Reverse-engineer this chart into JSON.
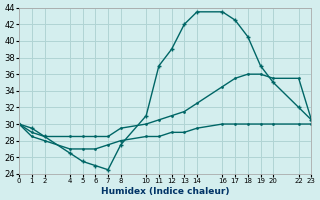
{
  "xlabel": "Humidex (Indice chaleur)",
  "background_color": "#d4eeee",
  "grid_color": "#b0d4d4",
  "line_color": "#006666",
  "ylim": [
    24,
    44
  ],
  "yticks": [
    24,
    26,
    28,
    30,
    32,
    34,
    36,
    38,
    40,
    42,
    44
  ],
  "xlim": [
    0,
    23
  ],
  "xtick_positions": [
    0,
    1,
    2,
    4,
    5,
    6,
    7,
    8,
    10,
    11,
    12,
    13,
    14,
    16,
    17,
    18,
    19,
    20,
    22,
    23
  ],
  "xtick_labels": [
    "0",
    "1",
    "2",
    "4",
    "5",
    "6",
    "7",
    "8",
    "10",
    "11",
    "12",
    "13",
    "14",
    "16",
    "17",
    "18",
    "19",
    "20",
    "22",
    "23"
  ],
  "line1_x": [
    0,
    1,
    2,
    4,
    5,
    6,
    7,
    8,
    10,
    11,
    12,
    13,
    14,
    16,
    17,
    18,
    19,
    20,
    22,
    23
  ],
  "line1_y": [
    30,
    29.5,
    28.5,
    26.5,
    25.5,
    25,
    24.5,
    27.5,
    31,
    37,
    39,
    42,
    43.5,
    43.5,
    42.5,
    40.5,
    37,
    35,
    32,
    30.5
  ],
  "line2_x": [
    0,
    1,
    2,
    4,
    5,
    6,
    7,
    8,
    10,
    11,
    12,
    13,
    14,
    16,
    17,
    18,
    19,
    20,
    22,
    23
  ],
  "line2_y": [
    30,
    29,
    28.5,
    28.5,
    28.5,
    28.5,
    28.5,
    29.5,
    30,
    30.5,
    31,
    31.5,
    32.5,
    34.5,
    35.5,
    36,
    36,
    35.5,
    35.5,
    30.5
  ],
  "line3_x": [
    0,
    1,
    2,
    4,
    5,
    6,
    7,
    8,
    10,
    11,
    12,
    13,
    14,
    16,
    17,
    18,
    19,
    20,
    22,
    23
  ],
  "line3_y": [
    30,
    28.5,
    28,
    27,
    27,
    27,
    27.5,
    28,
    28.5,
    28.5,
    29,
    29,
    29.5,
    30,
    30,
    30,
    30,
    30,
    30,
    30
  ]
}
